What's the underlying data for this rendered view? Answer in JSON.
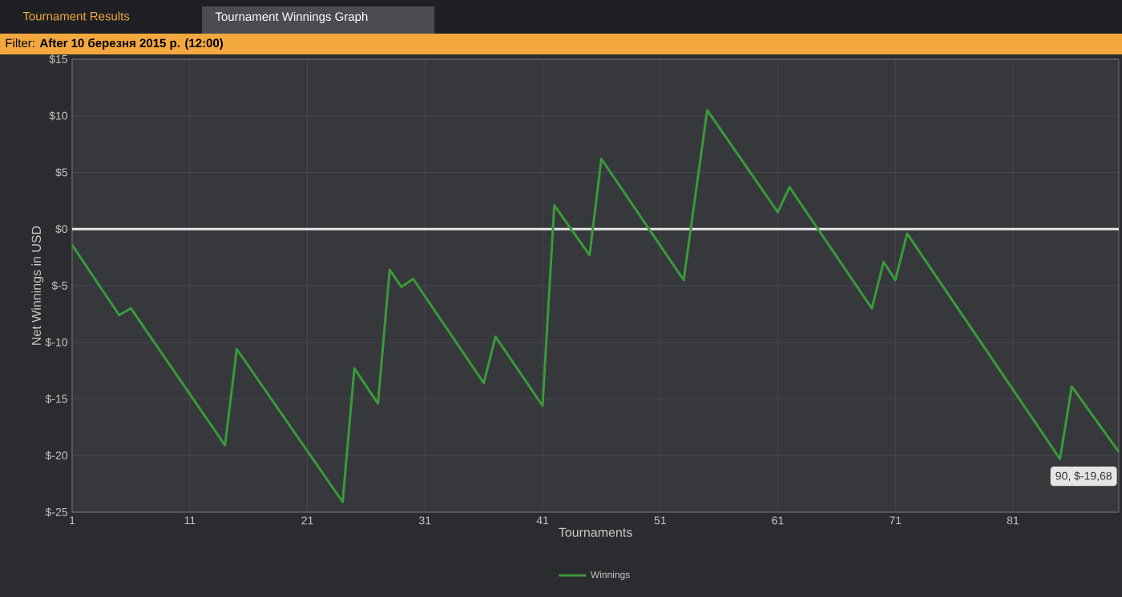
{
  "chart_data": {
    "type": "line",
    "subtitle": "Filter: **After 10 березня 2015 р. (12:00)**",
    "xlabel": "Tournaments",
    "ylabel": "Net Winnings in USD",
    "x": [
      1,
      5,
      6,
      14,
      15,
      24,
      25,
      27,
      28,
      29,
      30,
      36,
      37,
      41,
      42,
      45,
      46,
      53,
      55,
      61,
      62,
      69,
      70,
      71,
      72,
      85,
      86,
      90
    ],
    "series": [
      {
        "name": "Winnings",
        "color": "#3a9a3a",
        "values": [
          -1.4,
          -7.6,
          -7.0,
          -19.1,
          -10.6,
          -24.1,
          -12.3,
          -15.4,
          -3.6,
          -5.1,
          -4.4,
          -13.6,
          -9.5,
          -15.6,
          2.1,
          -2.3,
          6.2,
          -4.5,
          10.5,
          1.5,
          3.7,
          -7.0,
          -2.9,
          -4.5,
          -0.4,
          -20.3,
          -13.9,
          -19.68
        ]
      }
    ],
    "xlim": [
      1,
      90
    ],
    "ylim": [
      -25,
      15
    ],
    "xticks": [
      1,
      11,
      21,
      31,
      41,
      51,
      61,
      71,
      81
    ],
    "yticks": [
      {
        "value": -25,
        "label": "$-25"
      },
      {
        "value": -20,
        "label": "$-20"
      },
      {
        "value": -15,
        "label": "$-15"
      },
      {
        "value": -10,
        "label": "$-10"
      },
      {
        "value": -5,
        "label": "$-5"
      },
      {
        "value": 0,
        "label": "$0"
      },
      {
        "value": 5,
        "label": "$5"
      },
      {
        "value": 10,
        "label": "$10"
      },
      {
        "value": 15,
        "label": "$15"
      }
    ],
    "ref_lines": [
      {
        "axis": "y",
        "value": 0,
        "color": "#e6e6e6"
      }
    ],
    "grid": true,
    "legend": "bottom",
    "annotations": [
      "Tournament Results",
      "Tournament Winnings Graph",
      {
        "text": "90, $-19,68",
        "x": 90,
        "y": -19.68
      }
    ]
  }
}
